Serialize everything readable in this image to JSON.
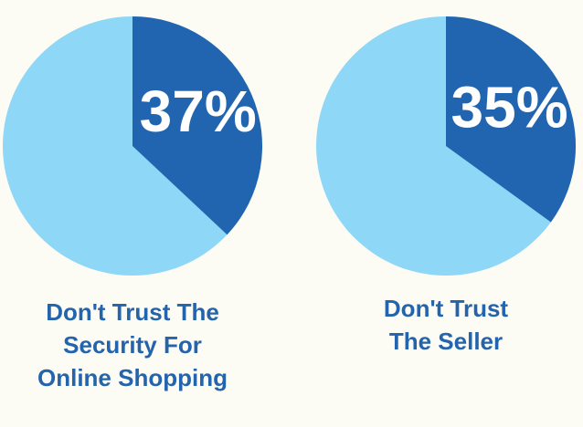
{
  "chart_data": [
    {
      "type": "pie",
      "title": [
        "Don't Trust The",
        "Security For",
        "Online Shopping"
      ],
      "values": [
        37
      ],
      "value_labels": [
        "37%"
      ],
      "color": "#2165b0",
      "background_color": "#8fd7f7"
    },
    {
      "type": "pie",
      "title": [
        "Don't Trust",
        "The Seller"
      ],
      "values": [
        35
      ],
      "value_labels": [
        "35%"
      ],
      "color": "#2165b0",
      "background_color": "#8fd7f7"
    }
  ]
}
